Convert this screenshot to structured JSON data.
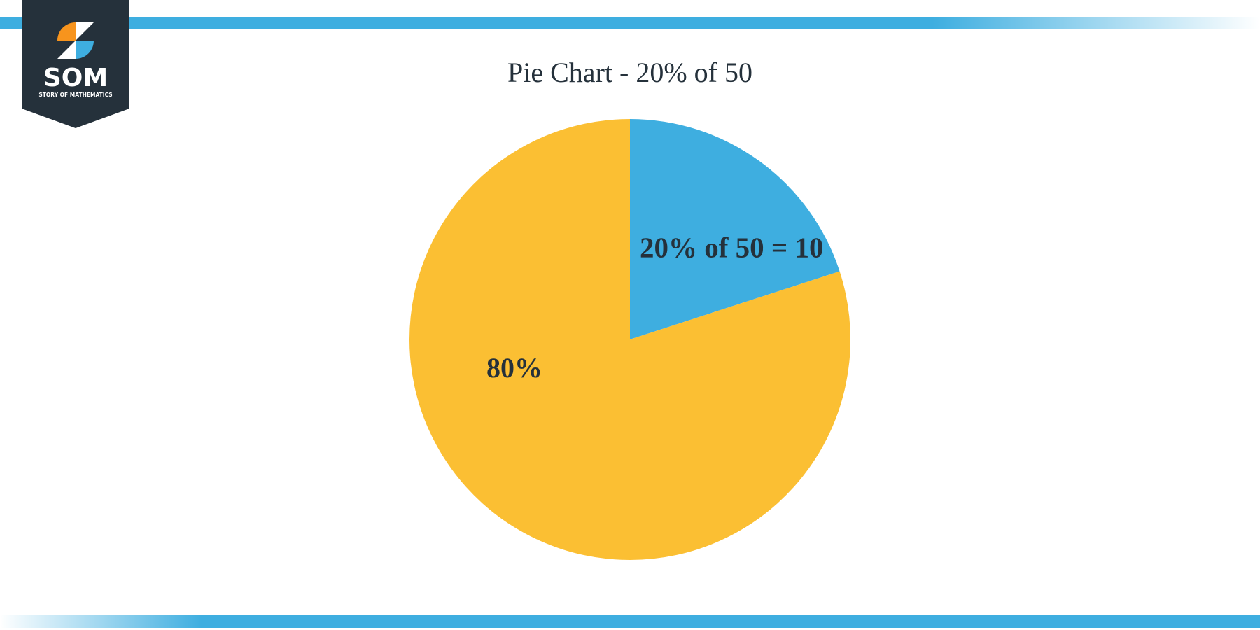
{
  "logo": {
    "text": "SOM",
    "subtitle": "STORY OF MATHEMATICS"
  },
  "chart_data": {
    "type": "pie",
    "title": "Pie Chart - 20% of 50",
    "values": [
      20,
      80
    ],
    "value_labels": [
      "20% of 50 = 10",
      "80%"
    ],
    "colors": [
      "#3eaee0",
      "#fbbf33"
    ]
  }
}
